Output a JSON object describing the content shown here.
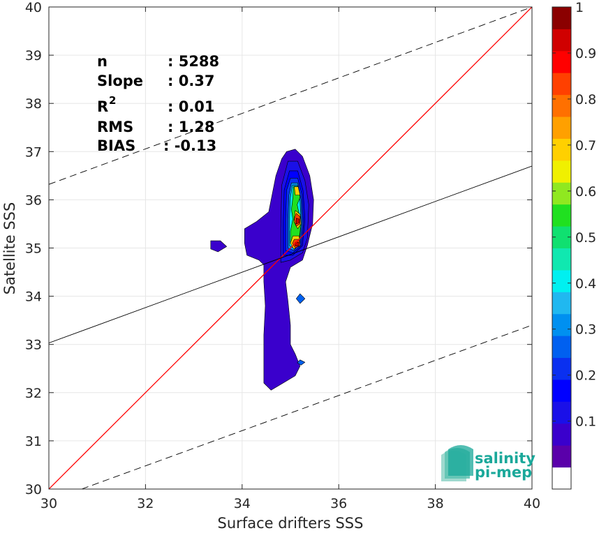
{
  "chart_data": {
    "type": "heatmap",
    "xlabel": "Surface drifters SSS",
    "ylabel": "Satellite SSS",
    "xlim": [
      30,
      40
    ],
    "ylim": [
      30,
      40
    ],
    "xticks": [
      "30",
      "32",
      "34",
      "36",
      "38",
      "40"
    ],
    "yticks": [
      "30",
      "31",
      "32",
      "33",
      "34",
      "35",
      "36",
      "37",
      "38",
      "39",
      "40"
    ],
    "grid": true,
    "stats": [
      {
        "label": "n",
        "value": ": 5288"
      },
      {
        "label": "Slope",
        "value": ": 0.37"
      },
      {
        "label": "R",
        "sup": "2",
        "value": ": 0.01"
      },
      {
        "label": "RMS",
        "value": ": 1.28"
      },
      {
        "label": "BIAS",
        "value": ": -0.13"
      }
    ],
    "lines": {
      "identity": {
        "color": "#ff0000",
        "points": [
          [
            30,
            30
          ],
          [
            40,
            40
          ]
        ]
      },
      "regression": {
        "color": "#000000",
        "points": [
          [
            30,
            33.03
          ],
          [
            40,
            36.7
          ]
        ]
      },
      "upper_bound": {
        "color": "#000000",
        "dash": true,
        "points": [
          [
            30,
            36.32
          ],
          [
            40,
            40.0
          ]
        ]
      },
      "lower_bound": {
        "color": "#000000",
        "dash": true,
        "points": [
          [
            30.68,
            30.0
          ],
          [
            40,
            33.4
          ]
        ]
      }
    },
    "colorbar": {
      "ticks": [
        "0.1",
        "0.2",
        "0.3",
        "0.4",
        "0.5",
        "0.6",
        "0.7",
        "0.8",
        "0.9",
        "1"
      ],
      "levels": [
        0,
        0.05,
        0.1,
        0.15,
        0.2,
        0.25,
        0.3,
        0.35,
        0.4,
        0.45,
        0.5,
        0.55,
        0.6,
        0.65,
        0.7,
        0.75,
        0.8,
        0.85,
        0.9,
        0.95,
        1.0
      ],
      "colors": [
        "#ffffff",
        "#5a00aa",
        "#3a00cc",
        "#1a10e8",
        "#0000ff",
        "#0a30f0",
        "#0060f0",
        "#0090f0",
        "#20b8f0",
        "#00f0f0",
        "#10e8b0",
        "#10e070",
        "#20e020",
        "#90e820",
        "#f0f000",
        "#ffd000",
        "#ffa000",
        "#ff7000",
        "#ff4000",
        "#ff0000",
        "#d00000",
        "#8b0000"
      ]
    },
    "density_contours": [
      {
        "level": 0.05,
        "polygons": [
          [
            [
              34.92,
              37.0
            ],
            [
              35.1,
              37.05
            ],
            [
              35.25,
              36.9
            ],
            [
              35.4,
              36.5
            ],
            [
              35.48,
              36.0
            ],
            [
              35.46,
              35.5
            ],
            [
              35.35,
              35.05
            ],
            [
              35.25,
              34.75
            ],
            [
              35.0,
              34.6
            ],
            [
              34.9,
              34.3
            ],
            [
              34.95,
              33.9
            ],
            [
              35.0,
              33.4
            ],
            [
              35.0,
              33.0
            ],
            [
              35.1,
              32.8
            ],
            [
              35.2,
              32.55
            ],
            [
              35.1,
              32.35
            ],
            [
              34.85,
              32.2
            ],
            [
              34.6,
              32.05
            ],
            [
              34.45,
              32.2
            ],
            [
              34.45,
              32.7
            ],
            [
              34.45,
              33.2
            ],
            [
              34.48,
              33.8
            ],
            [
              34.45,
              34.3
            ],
            [
              34.45,
              34.65
            ],
            [
              34.35,
              34.75
            ],
            [
              34.1,
              34.85
            ],
            [
              34.05,
              35.1
            ],
            [
              34.05,
              35.4
            ],
            [
              34.3,
              35.55
            ],
            [
              34.55,
              35.75
            ],
            [
              34.7,
              36.5
            ],
            [
              34.82,
              36.85
            ]
          ],
          [
            [
              33.35,
              35.15
            ],
            [
              33.55,
              35.15
            ],
            [
              33.68,
              35.03
            ],
            [
              33.5,
              34.92
            ],
            [
              33.35,
              34.98
            ]
          ]
        ]
      },
      {
        "level": 0.1,
        "polygons": [
          [
            [
              34.95,
              36.8
            ],
            [
              35.15,
              36.8
            ],
            [
              35.3,
              36.4
            ],
            [
              35.38,
              35.9
            ],
            [
              35.35,
              35.2
            ],
            [
              35.25,
              34.9
            ],
            [
              35.0,
              34.75
            ],
            [
              34.8,
              34.7
            ],
            [
              34.8,
              35.4
            ],
            [
              34.82,
              36.3
            ]
          ]
        ]
      },
      {
        "level": 0.15,
        "polygons": [
          [
            [
              34.98,
              36.6
            ],
            [
              35.15,
              36.6
            ],
            [
              35.26,
              36.2
            ],
            [
              35.3,
              35.6
            ],
            [
              35.25,
              35.05
            ],
            [
              35.05,
              34.85
            ],
            [
              34.85,
              34.85
            ],
            [
              34.85,
              35.5
            ],
            [
              34.87,
              36.2
            ]
          ]
        ]
      },
      {
        "level": 0.2,
        "polygons": [
          [
            [
              35.0,
              36.45
            ],
            [
              35.15,
              36.45
            ],
            [
              35.24,
              36.1
            ],
            [
              35.27,
              35.5
            ],
            [
              35.22,
              35.05
            ],
            [
              35.05,
              34.9
            ],
            [
              34.9,
              34.95
            ],
            [
              34.9,
              35.6
            ],
            [
              34.92,
              36.2
            ]
          ]
        ]
      },
      {
        "level": 0.25,
        "polygons": [
          [
            [
              35.2,
              34.05
            ],
            [
              35.3,
              33.95
            ],
            [
              35.2,
              33.85
            ],
            [
              35.12,
              33.95
            ]
          ],
          [
            [
              35.2,
              32.68
            ],
            [
              35.3,
              32.63
            ],
            [
              35.22,
              32.57
            ],
            [
              35.14,
              32.62
            ]
          ]
        ]
      },
      {
        "level": 0.3,
        "polygons": [
          [
            [
              35.02,
              36.35
            ],
            [
              35.15,
              36.35
            ],
            [
              35.22,
              36.0
            ],
            [
              35.24,
              35.5
            ],
            [
              35.2,
              35.1
            ],
            [
              35.07,
              34.95
            ],
            [
              34.95,
              35.0
            ],
            [
              34.95,
              35.6
            ],
            [
              34.97,
              36.1
            ]
          ]
        ]
      },
      {
        "level": 0.4,
        "polygons": [
          [
            [
              35.04,
              36.3
            ],
            [
              35.15,
              36.3
            ],
            [
              35.2,
              35.95
            ],
            [
              35.22,
              35.5
            ],
            [
              35.18,
              35.1
            ],
            [
              35.07,
              35.0
            ],
            [
              34.98,
              35.05
            ],
            [
              34.98,
              35.6
            ],
            [
              35.0,
              36.05
            ]
          ]
        ]
      },
      {
        "level": 0.55,
        "polygons": [
          [
            [
              35.06,
              36.28
            ],
            [
              35.16,
              36.28
            ],
            [
              35.2,
              36.05
            ],
            [
              35.14,
              35.9
            ],
            [
              35.18,
              35.7
            ],
            [
              35.22,
              35.5
            ],
            [
              35.18,
              35.2
            ],
            [
              35.1,
              35.05
            ],
            [
              35.0,
              35.1
            ],
            [
              35.0,
              35.35
            ],
            [
              35.05,
              35.6
            ],
            [
              35.02,
              35.8
            ],
            [
              35.05,
              36.05
            ]
          ]
        ]
      },
      {
        "level": 0.7,
        "polygons": [
          [
            [
              35.08,
              36.27
            ],
            [
              35.16,
              36.27
            ],
            [
              35.2,
              36.1
            ],
            [
              35.1,
              36.1
            ]
          ],
          [
            [
              35.1,
              35.78
            ],
            [
              35.2,
              35.7
            ],
            [
              35.22,
              35.5
            ],
            [
              35.15,
              35.4
            ],
            [
              35.07,
              35.55
            ]
          ],
          [
            [
              35.05,
              35.25
            ],
            [
              35.18,
              35.25
            ],
            [
              35.2,
              35.05
            ],
            [
              35.07,
              34.98
            ],
            [
              35.0,
              35.1
            ]
          ]
        ]
      },
      {
        "level": 0.85,
        "polygons": [
          [
            [
              35.12,
              35.72
            ],
            [
              35.2,
              35.65
            ],
            [
              35.2,
              35.5
            ],
            [
              35.12,
              35.45
            ],
            [
              35.08,
              35.6
            ]
          ],
          [
            [
              35.08,
              35.18
            ],
            [
              35.18,
              35.18
            ],
            [
              35.2,
              35.05
            ],
            [
              35.1,
              35.0
            ],
            [
              35.04,
              35.1
            ]
          ]
        ]
      },
      {
        "level": 0.95,
        "polygons": [
          [
            [
              35.12,
              35.62
            ],
            [
              35.18,
              35.6
            ],
            [
              35.18,
              35.52
            ],
            [
              35.12,
              35.5
            ]
          ],
          [
            [
              35.1,
              35.12
            ],
            [
              35.17,
              35.12
            ],
            [
              35.17,
              35.04
            ],
            [
              35.1,
              35.04
            ]
          ]
        ]
      }
    ],
    "logo": {
      "line1": "salinity",
      "line2": "pi-mep"
    }
  }
}
